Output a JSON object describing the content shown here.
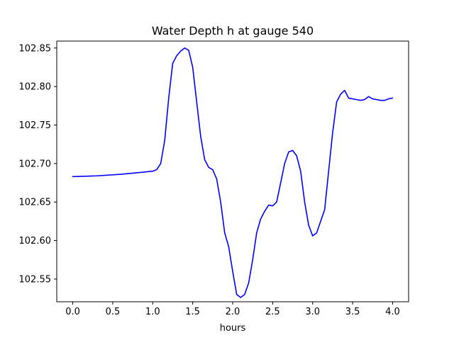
{
  "chart_data": {
    "type": "line",
    "title": "Water Depth h at gauge 540",
    "xlabel": "hours",
    "ylabel": "",
    "xlim": [
      -0.2,
      4.2
    ],
    "ylim": [
      102.5205,
      102.859
    ],
    "xticks": [
      0.0,
      0.5,
      1.0,
      1.5,
      2.0,
      2.5,
      3.0,
      3.5,
      4.0
    ],
    "xtick_labels": [
      "0.0",
      "0.5",
      "1.0",
      "1.5",
      "2.0",
      "2.5",
      "3.0",
      "3.5",
      "4.0"
    ],
    "yticks": [
      102.55,
      102.6,
      102.65,
      102.7,
      102.75,
      102.8,
      102.85
    ],
    "ytick_labels": [
      "102.55",
      "102.60",
      "102.65",
      "102.70",
      "102.75",
      "102.80",
      "102.85"
    ],
    "grid": false,
    "series": [
      {
        "color": "#0000ff",
        "x": [
          0.0,
          0.3,
          0.6,
          0.8,
          1.0,
          1.05,
          1.1,
          1.15,
          1.2,
          1.25,
          1.3,
          1.35,
          1.4,
          1.45,
          1.5,
          1.55,
          1.6,
          1.65,
          1.7,
          1.75,
          1.8,
          1.85,
          1.9,
          1.95,
          2.0,
          2.05,
          2.1,
          2.15,
          2.2,
          2.25,
          2.3,
          2.35,
          2.4,
          2.45,
          2.5,
          2.55,
          2.6,
          2.65,
          2.7,
          2.75,
          2.8,
          2.85,
          2.9,
          2.95,
          3.0,
          3.05,
          3.1,
          3.15,
          3.2,
          3.25,
          3.3,
          3.35,
          3.4,
          3.45,
          3.5,
          3.55,
          3.6,
          3.65,
          3.7,
          3.75,
          3.8,
          3.85,
          3.9,
          3.95,
          4.0
        ],
        "y": [
          102.683,
          102.684,
          102.686,
          102.688,
          102.69,
          102.692,
          102.7,
          102.73,
          102.785,
          102.83,
          102.84,
          102.846,
          102.85,
          102.847,
          102.825,
          102.78,
          102.735,
          102.705,
          102.695,
          102.692,
          102.68,
          102.65,
          102.61,
          102.592,
          102.56,
          102.53,
          102.526,
          102.53,
          102.545,
          102.575,
          102.61,
          102.628,
          102.638,
          102.646,
          102.645,
          102.65,
          102.675,
          102.7,
          102.715,
          102.717,
          102.71,
          102.69,
          102.65,
          102.62,
          102.606,
          102.61,
          102.625,
          102.64,
          102.69,
          102.74,
          102.78,
          102.79,
          102.795,
          102.785,
          102.784,
          102.783,
          102.782,
          102.783,
          102.787,
          102.784,
          102.783,
          102.782,
          102.782,
          102.784,
          102.785
        ]
      }
    ]
  }
}
